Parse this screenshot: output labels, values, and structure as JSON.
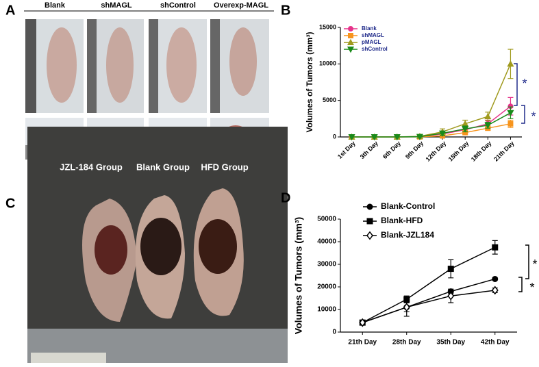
{
  "panel_labels": [
    "A",
    "B",
    "C",
    "D"
  ],
  "photo_a": {
    "labels": [
      "Blank",
      "shMAGL",
      "shControl",
      "Overexp-MAGL"
    ]
  },
  "photo_c": {
    "labels": [
      "JZL-184 Group",
      "Blank Group",
      "HFD Group"
    ]
  },
  "chart_data": [
    {
      "type": "line",
      "ylabel": "Volumes of Tumors (mm³)",
      "categories": [
        "1st Day",
        "3th Day",
        "6th Day",
        "9th Day",
        "12th Day",
        "15th Day",
        "18th Day",
        "21th Day"
      ],
      "ylim": [
        0,
        15000
      ],
      "yticks": [
        0,
        5000,
        10000,
        15000
      ],
      "legend": "upper left",
      "series": [
        {
          "name": "Blank",
          "color": "#e6338a",
          "marker": "circle",
          "values": [
            0,
            0,
            0,
            50,
            400,
            1000,
            1800,
            4200
          ],
          "errors": [
            0,
            0,
            0,
            50,
            200,
            400,
            500,
            1200
          ]
        },
        {
          "name": "shMAGL",
          "color": "#f7941d",
          "marker": "square",
          "values": [
            0,
            0,
            0,
            20,
            150,
            600,
            1200,
            1800
          ],
          "errors": [
            0,
            0,
            0,
            20,
            100,
            200,
            300,
            500
          ]
        },
        {
          "name": "pMAGL",
          "color": "#a09a1e",
          "marker": "triangle",
          "values": [
            0,
            0,
            0,
            80,
            700,
            1800,
            2800,
            10000
          ],
          "errors": [
            0,
            0,
            0,
            50,
            400,
            500,
            600,
            2000
          ]
        },
        {
          "name": "shControl",
          "color": "#1a8a1a",
          "marker": "triangle-down",
          "values": [
            0,
            0,
            0,
            40,
            500,
            1100,
            1600,
            3300
          ],
          "errors": [
            0,
            0,
            0,
            30,
            300,
            400,
            400,
            800
          ]
        }
      ],
      "annotations": [
        "*",
        "*"
      ]
    },
    {
      "type": "line",
      "ylabel": "Volumes of Tumors (mm³)",
      "categories": [
        "21th Day",
        "28th Day",
        "35th Day",
        "42th Day"
      ],
      "ylim": [
        0,
        50000
      ],
      "yticks": [
        0,
        10000,
        20000,
        30000,
        40000,
        50000
      ],
      "legend": "upper left",
      "series": [
        {
          "name": "Blank-Control",
          "color": "#000000",
          "marker": "circle",
          "values": [
            4200,
            11000,
            18000,
            23500
          ],
          "errors": [
            1000,
            4000,
            1000,
            500
          ]
        },
        {
          "name": "Blank-HFD",
          "color": "#000000",
          "marker": "square",
          "values": [
            4200,
            14500,
            28000,
            37500
          ],
          "errors": [
            1000,
            1500,
            4000,
            3000
          ]
        },
        {
          "name": "Blank-JZL184",
          "color": "#000000",
          "marker": "diamond-open",
          "values": [
            4200,
            11000,
            16000,
            18500
          ],
          "errors": [
            1000,
            2000,
            3000,
            1000
          ]
        }
      ],
      "annotations": [
        "*",
        "*"
      ]
    }
  ]
}
